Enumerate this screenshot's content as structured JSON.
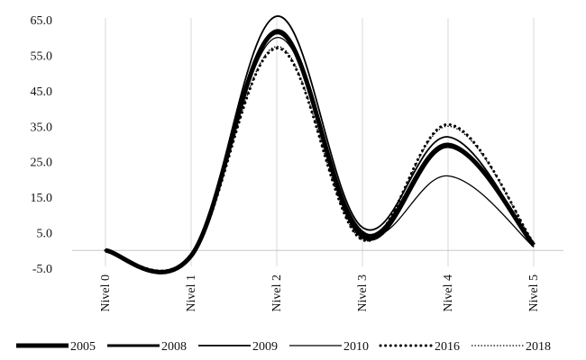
{
  "chart_data": {
    "type": "line",
    "title": "",
    "xlabel": "",
    "ylabel": "",
    "categories": [
      "Nivel 0",
      "Nivel 1",
      "Nivel 2",
      "Nivel 3",
      "Nivel 4",
      "Nivel 5"
    ],
    "y_ticks": [
      "65.0",
      "55.0",
      "45.0",
      "35.0",
      "25.0",
      "15.0",
      "5.0",
      "-5.0"
    ],
    "ylim": [
      -5,
      65
    ],
    "grid": "vertical",
    "smooth": true,
    "legend_position": "bottom",
    "series": [
      {
        "name": "2005",
        "values": [
          0.0,
          -1.5,
          61.5,
          4.0,
          29.5,
          1.5
        ],
        "color": "#000000",
        "style": "solid-heavy"
      },
      {
        "name": "2008",
        "values": [
          0.0,
          -1.5,
          62.0,
          5.0,
          30.0,
          1.5
        ],
        "color": "#000000",
        "style": "solid-bold"
      },
      {
        "name": "2009",
        "values": [
          0.0,
          -1.5,
          66.0,
          6.5,
          32.0,
          1.0
        ],
        "color": "#000000",
        "style": "solid"
      },
      {
        "name": "2010",
        "values": [
          0.0,
          -1.5,
          60.0,
          5.5,
          21.0,
          1.0
        ],
        "color": "#000000",
        "style": "solid-thin"
      },
      {
        "name": "2016",
        "values": [
          0.0,
          -1.5,
          57.0,
          3.0,
          35.5,
          2.0
        ],
        "color": "#000000",
        "style": "dotted-bold"
      },
      {
        "name": "2018",
        "values": [
          0.0,
          -1.5,
          57.5,
          3.0,
          35.0,
          2.0
        ],
        "color": "#000000",
        "style": "dotted-thin"
      }
    ]
  }
}
